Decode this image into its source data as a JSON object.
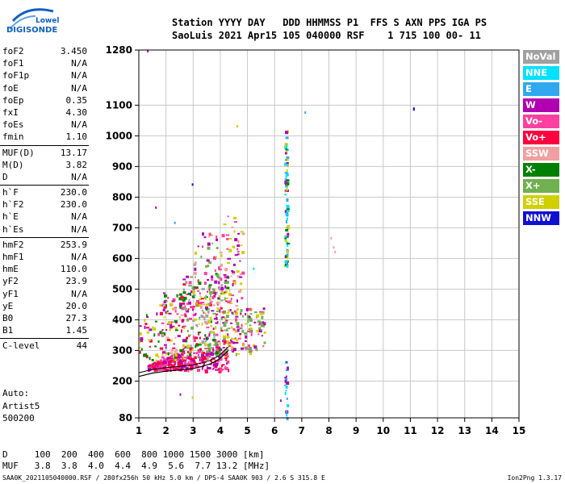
{
  "logo": {
    "line1": "Lowell",
    "line2": "DIGISONDE"
  },
  "header": {
    "line1": "Station YYYY DAY   DDD HHMMSS P1  FFS S AXN PPS IGA PS",
    "line2": "SaoLuis 2021 Apr15 105 040000 RSF    1 715 100 00- 11"
  },
  "params": [
    {
      "label": "foF2",
      "value": "3.450"
    },
    {
      "label": "foF1",
      "value": "N/A"
    },
    {
      "label": "foF1p",
      "value": "N/A"
    },
    {
      "label": "foE",
      "value": "N/A"
    },
    {
      "label": "foEp",
      "value": "0.35"
    },
    {
      "label": "fxI",
      "value": "4.30"
    },
    {
      "label": "foEs",
      "value": "N/A"
    },
    {
      "label": "fmin",
      "value": "1.10"
    },
    {
      "label": "MUF(D)",
      "value": "13.17"
    },
    {
      "label": "M(D)",
      "value": "3.82"
    },
    {
      "label": "D",
      "value": "N/A"
    },
    {
      "label": "h`F",
      "value": "230.0"
    },
    {
      "label": "h`F2",
      "value": "230.0"
    },
    {
      "label": "h`E",
      "value": "N/A"
    },
    {
      "label": "h`Es",
      "value": "N/A"
    },
    {
      "label": "hmF2",
      "value": "253.9"
    },
    {
      "label": "hmF1",
      "value": "N/A"
    },
    {
      "label": "hmE",
      "value": "110.0"
    },
    {
      "label": "yF2",
      "value": "23.9"
    },
    {
      "label": "yF1",
      "value": "N/A"
    },
    {
      "label": "yE",
      "value": "20.0"
    },
    {
      "label": "B0",
      "value": "27.3"
    },
    {
      "label": "B1",
      "value": "1.45"
    },
    {
      "label": "C-level",
      "value": "44"
    }
  ],
  "auto": {
    "line1": "Auto:",
    "line2": "Artist5",
    "line3": "500200"
  },
  "legend": [
    {
      "label": "NoVal",
      "color": "#a0a0a0"
    },
    {
      "label": "NNE",
      "color": "#00e0ff"
    },
    {
      "label": "E",
      "color": "#30a8f0"
    },
    {
      "label": "W",
      "color": "#b000b0"
    },
    {
      "label": "Vo-",
      "color": "#ff40a0"
    },
    {
      "label": "Vo+",
      "color": "#ff0040"
    },
    {
      "label": "SSW",
      "color": "#f0a0a0"
    },
    {
      "label": "X-",
      "color": "#008000"
    },
    {
      "label": "X+",
      "color": "#70b050"
    },
    {
      "label": "SSE",
      "color": "#d0d000"
    },
    {
      "label": "NNW",
      "color": "#1010d0"
    }
  ],
  "footer": {
    "line1": "D     100  200  400  600  800 1000 1500 3000 [km]",
    "line2": "MUF   3.8  3.8  4.0  4.4  4.9  5.6  7.7 13.2 [MHz]",
    "line3": "SAA0K_2021105040000.RSF / 280fx256h 50 kHz 5.0 km / DPS-4 SAA0K 903 / 2.6 S 315.8 E",
    "version": "Ion2Png 1.3.17"
  },
  "chart_data": {
    "type": "scatter",
    "x_range": [
      1,
      15
    ],
    "y_range": [
      80,
      1280
    ],
    "x_ticks": [
      1,
      2,
      3,
      4,
      5,
      6,
      7,
      8,
      9,
      10,
      11,
      12,
      13,
      14,
      15
    ],
    "y_ticks": [
      80,
      200,
      300,
      400,
      500,
      600,
      700,
      800,
      900,
      1000,
      1100,
      1280
    ],
    "grid": true,
    "legend_position": "right",
    "trace": {
      "x": [
        1.0,
        1.5,
        2.0,
        2.5,
        3.0,
        3.3,
        3.6,
        3.9,
        4.1,
        4.3
      ],
      "y": [
        215,
        226,
        232,
        236,
        241,
        247,
        255,
        268,
        283,
        300
      ]
    },
    "clusters": [
      {
        "x0": 1.3,
        "x1": 2.6,
        "y0": 240,
        "y1": 300,
        "mode": "under",
        "n": 190,
        "colors": [
          "#ff0040",
          "#ff40a0",
          "#b000b0"
        ]
      },
      {
        "x0": 2.4,
        "x1": 4.3,
        "y0": 235,
        "y1": 360,
        "mode": "under",
        "n": 170,
        "colors": [
          "#ff0040",
          "#ff40a0",
          "#b000b0"
        ]
      },
      {
        "x0": 1.6,
        "x1": 2.6,
        "y0": 270,
        "y1": 490,
        "mode": "uniform",
        "n": 110,
        "colors": [
          "#b000b0",
          "#ff40a0",
          "#ff0040",
          "#008000",
          "#d0d000",
          "#f0a0a0"
        ]
      },
      {
        "x0": 2.6,
        "x1": 4.3,
        "y0": 280,
        "y1": 560,
        "mode": "uniform",
        "n": 270,
        "colors": [
          "#b000b0",
          "#d0d000",
          "#ff40a0",
          "#ff0040",
          "#008000",
          "#70b050",
          "#a0a0a0"
        ]
      },
      {
        "x0": 3.0,
        "x1": 4.1,
        "y0": 390,
        "y1": 690,
        "mode": "uniform",
        "n": 70,
        "colors": [
          "#d0d000",
          "#b000b0",
          "#ff40a0",
          "#f0a0a0",
          "#70b050"
        ]
      },
      {
        "x0": 4.2,
        "x1": 5.6,
        "y0": 290,
        "y1": 440,
        "mode": "uniform",
        "n": 120,
        "colors": [
          "#d0d000",
          "#b000b0",
          "#ff40a0",
          "#70b050"
        ]
      },
      {
        "x0": 4.1,
        "x1": 4.8,
        "y0": 440,
        "y1": 740,
        "mode": "uniform",
        "n": 60,
        "colors": [
          "#d0d000",
          "#ff40a0",
          "#f0a0a0",
          "#b000b0"
        ]
      },
      {
        "x0": 1.0,
        "x1": 1.6,
        "y0": 270,
        "y1": 420,
        "mode": "uniform",
        "n": 30,
        "colors": [
          "#ff0040",
          "#008000",
          "#b000b0",
          "#d0d000"
        ]
      },
      {
        "x0": 6.35,
        "x1": 6.45,
        "y0": 570,
        "y1": 1020,
        "mode": "uniform",
        "n": 80,
        "colors": [
          "#00e0ff",
          "#30a8f0",
          "#d0d000",
          "#b000b0",
          "#008000"
        ]
      },
      {
        "x0": 6.35,
        "x1": 6.45,
        "y0": 80,
        "y1": 280,
        "mode": "uniform",
        "n": 22,
        "colors": [
          "#00e0ff",
          "#30a8f0",
          "#b000b0"
        ]
      }
    ],
    "points": [
      {
        "x": 7.1,
        "y": 1080,
        "color": "#30a8f0"
      },
      {
        "x": 11.1,
        "y": 1090,
        "color": "#1010d0"
      },
      {
        "x": 11.1,
        "y": 1093,
        "color": "#1010d0"
      },
      {
        "x": 8.15,
        "y": 640,
        "color": "#f0a0a0"
      },
      {
        "x": 8.2,
        "y": 625,
        "color": "#f0a0a0"
      },
      {
        "x": 8.05,
        "y": 670,
        "color": "#f0a0a0"
      },
      {
        "x": 1.3,
        "y": 1280,
        "color": "#b000b0"
      },
      {
        "x": 4.6,
        "y": 1035,
        "color": "#d0d000"
      },
      {
        "x": 5.2,
        "y": 570,
        "color": "#00e0ff"
      },
      {
        "x": 6.2,
        "y": 140,
        "color": "#b000b0"
      },
      {
        "x": 2.5,
        "y": 160,
        "color": "#b000b0"
      },
      {
        "x": 2.95,
        "y": 150,
        "color": "#d0d000"
      },
      {
        "x": 2.3,
        "y": 720,
        "color": "#30a8f0"
      },
      {
        "x": 2.95,
        "y": 845,
        "color": "#1010d0"
      },
      {
        "x": 1.6,
        "y": 770,
        "color": "#b000b0"
      }
    ]
  }
}
